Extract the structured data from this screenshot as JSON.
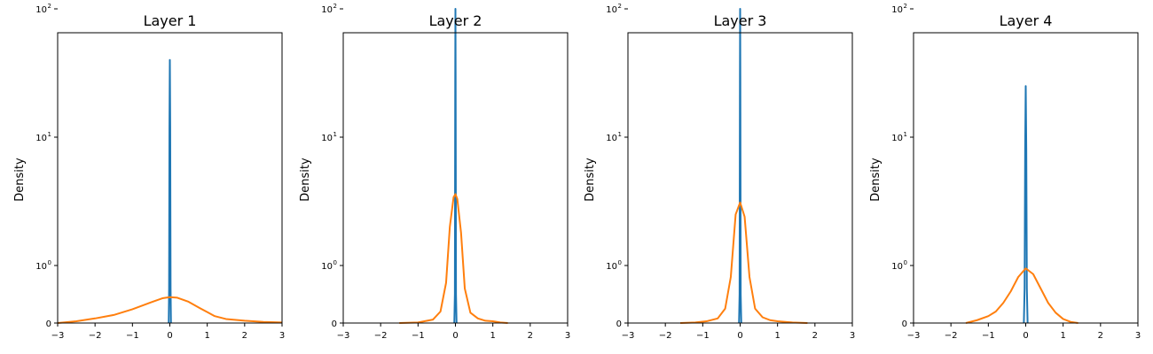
{
  "chart_data": [
    {
      "type": "line",
      "title": "Layer 1",
      "xlabel": "",
      "ylabel": "Density",
      "xlim": [
        -3,
        3
      ],
      "ylim": [
        0,
        100
      ],
      "yscale": "symlog",
      "xticks": [
        "−3",
        "−2",
        "−1",
        "0",
        "1",
        "2",
        "3"
      ],
      "grid": false,
      "series": [
        {
          "color": "#1f77b4",
          "x": [
            -0.03,
            -0.02,
            -0.01,
            0.0,
            0.01,
            0.02,
            0.03
          ],
          "y": [
            0.0,
            0.6,
            12.0,
            40.0,
            12.0,
            0.6,
            0.0
          ]
        },
        {
          "color": "#ff7f0e",
          "x": [
            -3.0,
            -2.5,
            -2.0,
            -1.5,
            -1.0,
            -0.5,
            -0.2,
            0.0,
            0.2,
            0.5,
            0.8,
            1.0,
            1.2,
            1.5,
            2.0,
            2.5,
            3.0
          ],
          "y": [
            0.0,
            0.03,
            0.08,
            0.14,
            0.24,
            0.36,
            0.43,
            0.45,
            0.44,
            0.37,
            0.26,
            0.19,
            0.12,
            0.07,
            0.04,
            0.02,
            0.01
          ]
        }
      ]
    },
    {
      "type": "line",
      "title": "Layer 2",
      "xlabel": "",
      "ylabel": "Density",
      "xlim": [
        -3,
        3
      ],
      "ylim": [
        0,
        100
      ],
      "yscale": "symlog",
      "xticks": [
        "−3",
        "−2",
        "−1",
        "0",
        "1",
        "2",
        "3"
      ],
      "grid": false,
      "series": [
        {
          "color": "#1f77b4",
          "x": [
            -0.03,
            -0.015,
            -0.005,
            0.0,
            0.005,
            0.015,
            0.03
          ],
          "y": [
            0.0,
            0.5,
            30.0,
            100.0,
            30.0,
            0.5,
            0.0
          ]
        },
        {
          "color": "#ff7f0e",
          "x": [
            -1.5,
            -1.0,
            -0.6,
            -0.4,
            -0.25,
            -0.15,
            -0.05,
            0.0,
            0.05,
            0.15,
            0.25,
            0.4,
            0.6,
            0.8,
            1.0,
            1.2,
            1.4
          ],
          "y": [
            0.0,
            0.01,
            0.06,
            0.2,
            0.7,
            2.0,
            3.4,
            3.6,
            3.3,
            1.8,
            0.6,
            0.18,
            0.08,
            0.04,
            0.03,
            0.01,
            0.0
          ]
        }
      ]
    },
    {
      "type": "line",
      "title": "Layer 3",
      "xlabel": "",
      "ylabel": "Density",
      "xlim": [
        -3,
        3
      ],
      "ylim": [
        0,
        100
      ],
      "yscale": "symlog",
      "xticks": [
        "−3",
        "−2",
        "−1",
        "0",
        "1",
        "2",
        "3"
      ],
      "grid": false,
      "series": [
        {
          "color": "#1f77b4",
          "x": [
            -0.03,
            -0.015,
            -0.005,
            0.0,
            0.005,
            0.015,
            0.03
          ],
          "y": [
            0.0,
            0.5,
            30.0,
            100.0,
            30.0,
            0.5,
            0.0
          ]
        },
        {
          "color": "#ff7f0e",
          "x": [
            -1.6,
            -1.2,
            -0.9,
            -0.6,
            -0.4,
            -0.25,
            -0.12,
            0.0,
            0.12,
            0.25,
            0.4,
            0.6,
            0.8,
            1.0,
            1.4,
            1.8
          ],
          "y": [
            0.0,
            0.01,
            0.03,
            0.08,
            0.25,
            0.8,
            2.5,
            3.1,
            2.4,
            0.8,
            0.25,
            0.1,
            0.05,
            0.03,
            0.01,
            0.0
          ]
        }
      ]
    },
    {
      "type": "line",
      "title": "Layer 4",
      "xlabel": "",
      "ylabel": "Density",
      "xlim": [
        -3,
        3
      ],
      "ylim": [
        0,
        100
      ],
      "yscale": "symlog",
      "xticks": [
        "−3",
        "−2",
        "−1",
        "0",
        "1",
        "2",
        "3"
      ],
      "grid": false,
      "series": [
        {
          "color": "#1f77b4",
          "x": [
            -0.05,
            -0.03,
            -0.015,
            0.0,
            0.015,
            0.03,
            0.05
          ],
          "y": [
            0.0,
            0.6,
            8.0,
            25.0,
            8.0,
            0.6,
            0.0
          ]
        },
        {
          "color": "#ff7f0e",
          "x": [
            -1.6,
            -1.3,
            -1.0,
            -0.8,
            -0.6,
            -0.4,
            -0.2,
            0.0,
            0.2,
            0.4,
            0.6,
            0.8,
            1.0,
            1.2,
            1.4
          ],
          "y": [
            0.0,
            0.05,
            0.12,
            0.2,
            0.35,
            0.55,
            0.8,
            0.95,
            0.85,
            0.6,
            0.35,
            0.18,
            0.07,
            0.02,
            0.0
          ]
        }
      ]
    }
  ],
  "ytick_labels": {
    "zero": "0",
    "one": "10",
    "one_exp": "0",
    "ten": "10",
    "ten_exp": "1",
    "hundred": "10",
    "hundred_exp": "2"
  }
}
